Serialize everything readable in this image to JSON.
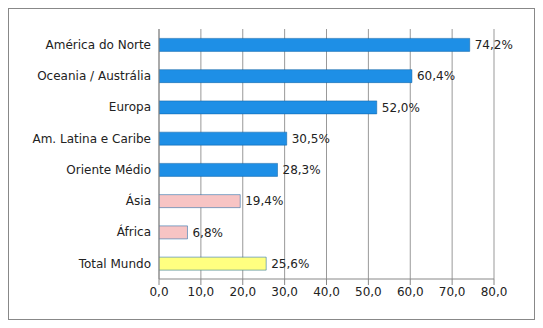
{
  "chart_data": {
    "type": "bar",
    "orientation": "horizontal",
    "categories": [
      "América do Norte",
      "Oceania / Austrália",
      "Europa",
      "Am. Latina e Caribe",
      "Oriente Médio",
      "Ásia",
      "África",
      "Total Mundo"
    ],
    "values": [
      74.2,
      60.4,
      52.0,
      30.5,
      28.3,
      19.4,
      6.8,
      25.6
    ],
    "value_labels": [
      "74,2%",
      "60,4%",
      "52,0%",
      "30,5%",
      "28,3%",
      "19,4%",
      "6,8%",
      "25,6%"
    ],
    "colors": [
      "#1e8fe6",
      "#1e8fe6",
      "#1e8fe6",
      "#1e8fe6",
      "#1e8fe6",
      "#f7c4c4",
      "#f7c4c4",
      "#ffff80"
    ],
    "xlim": [
      0,
      80
    ],
    "xticks": [
      {
        "value": 0,
        "label": "0,0"
      },
      {
        "value": 10,
        "label": "10,0"
      },
      {
        "value": 20,
        "label": "20,0"
      },
      {
        "value": 30,
        "label": "30,0"
      },
      {
        "value": 40,
        "label": "40,0"
      },
      {
        "value": 50,
        "label": "50,0"
      },
      {
        "value": 60,
        "label": "60,0"
      },
      {
        "value": 70,
        "label": "70,0"
      },
      {
        "value": 80,
        "label": "80,0"
      }
    ],
    "grid": true,
    "data_labels": true
  }
}
